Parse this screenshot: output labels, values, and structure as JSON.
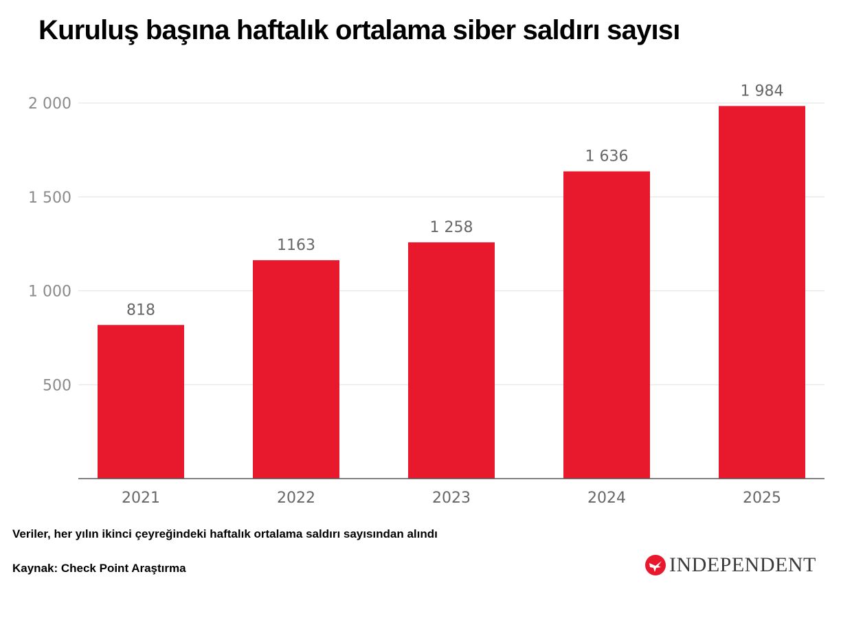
{
  "title": "Kuruluş başına haftalık ortalama siber saldırı sayısı",
  "note": "Veriler, her yılın ikinci çeyreğindeki haftalık ortalama saldırı sayısından alındı",
  "source": "Kaynak: Check Point Araştırma",
  "logo": {
    "text": "INDEPENDENT",
    "icon": "eagle-icon",
    "color": "#e8192c"
  },
  "chart_data": {
    "type": "bar",
    "title": "Kuruluş başına haftalık ortalama siber saldırı sayısı",
    "categories": [
      "2021",
      "2022",
      "2023",
      "2024",
      "2025"
    ],
    "values": [
      818,
      1163,
      1258,
      1636,
      1984
    ],
    "value_labels": [
      "818",
      "1163",
      "1 258",
      "1 636",
      "1 984"
    ],
    "yticks": [
      500,
      1000,
      1500,
      2000
    ],
    "ytick_labels": [
      "500",
      "1 000",
      "1 500",
      "2 000"
    ],
    "ylim": [
      0,
      2000
    ],
    "xlabel": "",
    "ylabel": "",
    "grid": true,
    "bar_color": "#e8192c"
  }
}
